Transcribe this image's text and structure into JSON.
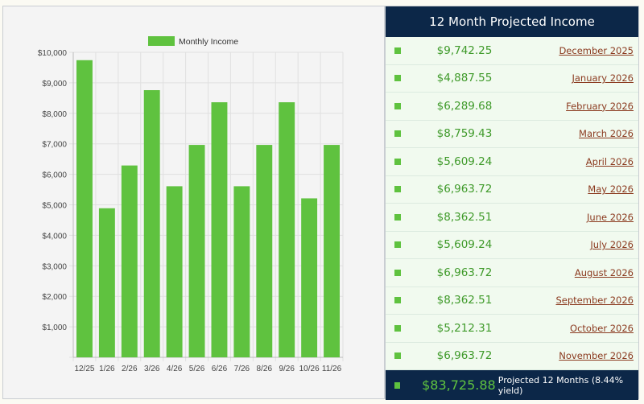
{
  "chart_data": {
    "type": "bar",
    "legend": "Monthly Income",
    "legend_position": "top",
    "categories": [
      "12/25",
      "1/26",
      "2/26",
      "3/26",
      "4/26",
      "5/26",
      "6/26",
      "7/26",
      "8/26",
      "9/26",
      "10/26",
      "11/26"
    ],
    "values": [
      9742.25,
      4887.55,
      6289.68,
      8759.43,
      5609.24,
      6963.72,
      8362.51,
      5609.24,
      6963.72,
      8362.51,
      5212.31,
      6963.72
    ],
    "ylim": [
      0,
      10000
    ],
    "yticks": [
      "$1,000",
      "$2,000",
      "$3,000",
      "$4,000",
      "$5,000",
      "$6,000",
      "$7,000",
      "$8,000",
      "$9,000",
      "$10,000"
    ],
    "grid": true,
    "color": "#5fc23f"
  },
  "table": {
    "title": "12 Month Projected Income",
    "rows": [
      {
        "amount": "$9,742.25",
        "month": "December 2025"
      },
      {
        "amount": "$4,887.55",
        "month": "January 2026"
      },
      {
        "amount": "$6,289.68",
        "month": "February 2026"
      },
      {
        "amount": "$8,759.43",
        "month": "March 2026"
      },
      {
        "amount": "$5,609.24",
        "month": "April 2026"
      },
      {
        "amount": "$6,963.72",
        "month": "May 2026"
      },
      {
        "amount": "$8,362.51",
        "month": "June 2026"
      },
      {
        "amount": "$5,609.24",
        "month": "July 2026"
      },
      {
        "amount": "$6,963.72",
        "month": "August 2026"
      },
      {
        "amount": "$8,362.51",
        "month": "September 2026"
      },
      {
        "amount": "$5,212.31",
        "month": "October 2026"
      },
      {
        "amount": "$6,963.72",
        "month": "November 2026"
      }
    ],
    "total": {
      "amount": "$83,725.88",
      "label": "Projected 12 Months (8.44% yield)"
    }
  }
}
